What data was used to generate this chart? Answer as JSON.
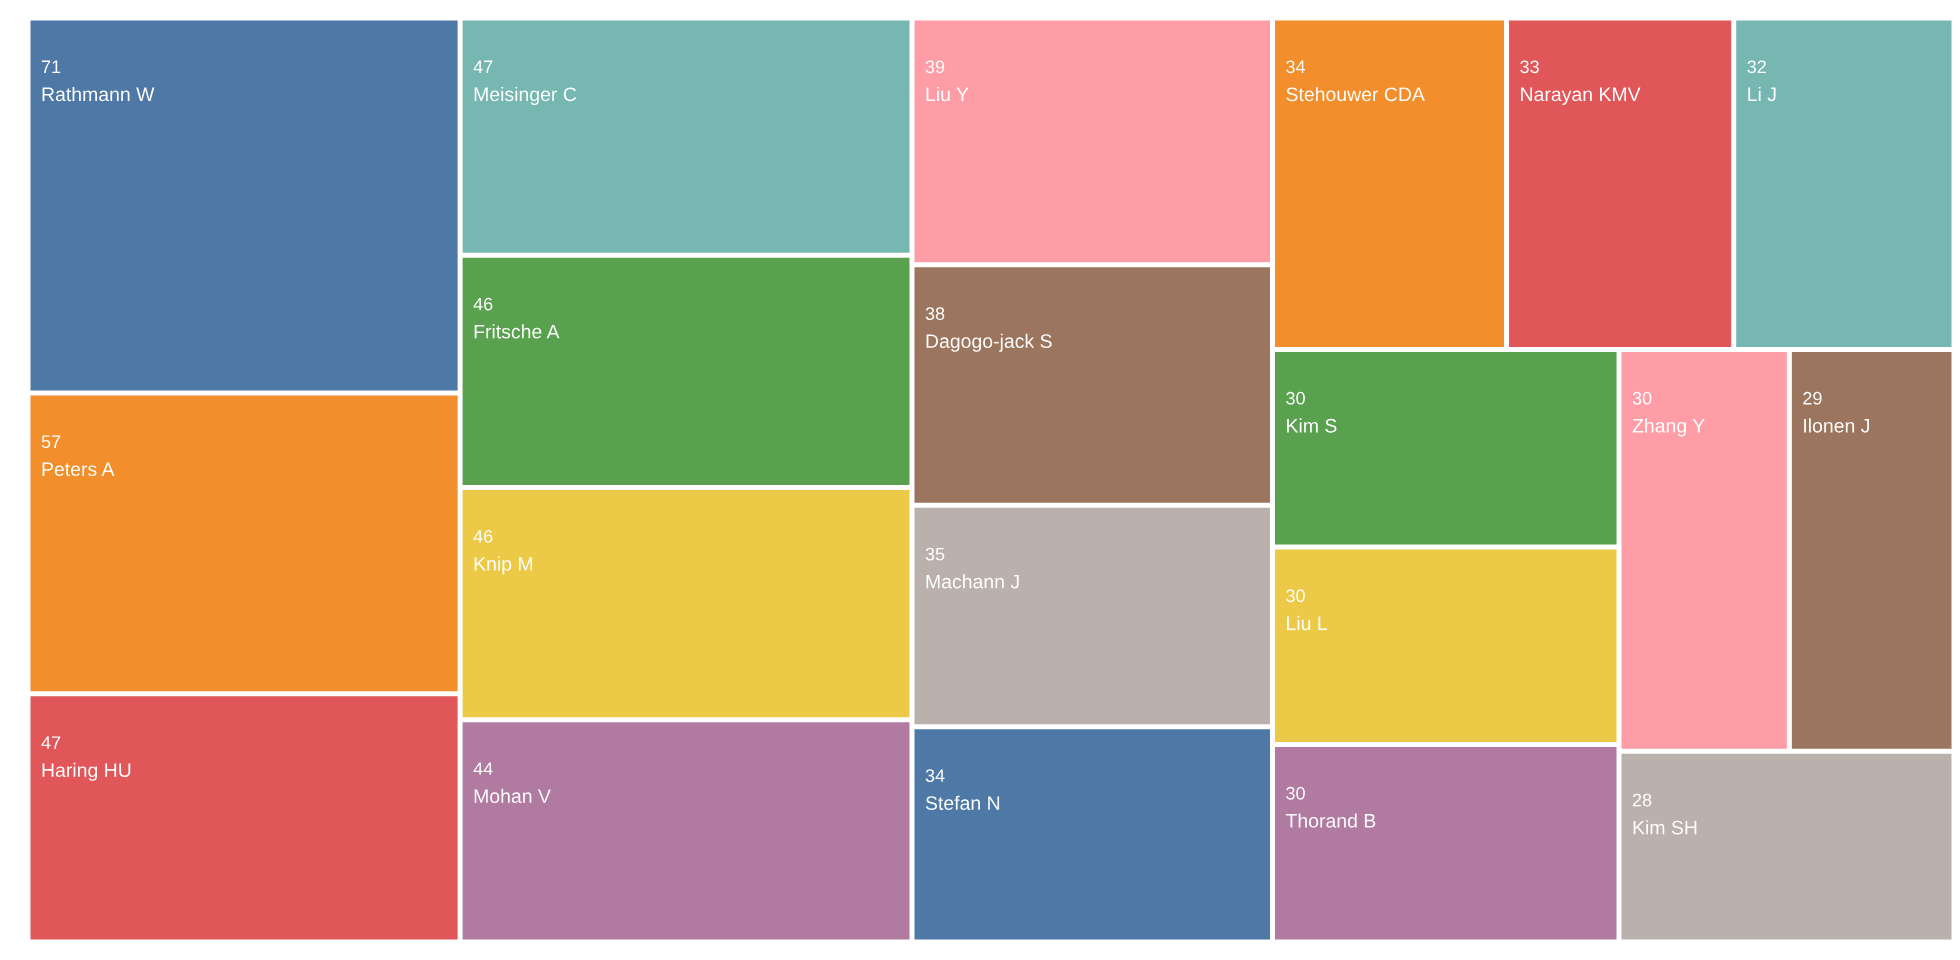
{
  "chart_data": {
    "type": "other",
    "categories": [
      "Rathmann W",
      "Peters A",
      "Haring HU",
      "Meisinger C",
      "Fritsche A",
      "Knip M",
      "Mohan V",
      "Liu Y",
      "Dagogo-jack S",
      "Machann J",
      "Stefan N",
      "Stehouwer CDA",
      "Narayan KMV",
      "Li J",
      "Kim S",
      "Liu L",
      "Thorand B",
      "Zhang Y",
      "Ilonen J",
      "Kim SH"
    ],
    "values": [
      71,
      57,
      47,
      47,
      46,
      46,
      44,
      39,
      38,
      35,
      34,
      34,
      33,
      32,
      30,
      30,
      30,
      30,
      29,
      28
    ],
    "colors": [
      "#4e79a7",
      "#f28e2b",
      "#e15759",
      "#76b7b2",
      "#59a14f",
      "#edc948",
      "#b07aa1",
      "#ff9da7",
      "#9c755f",
      "#bab0ac",
      "#4e79a7",
      "#f28e2b",
      "#e15759",
      "#76b7b2",
      "#59a14f",
      "#edc948",
      "#b07aa1",
      "#ff9da7",
      "#9c755f",
      "#bab0ac"
    ],
    "data_labels": true
  }
}
